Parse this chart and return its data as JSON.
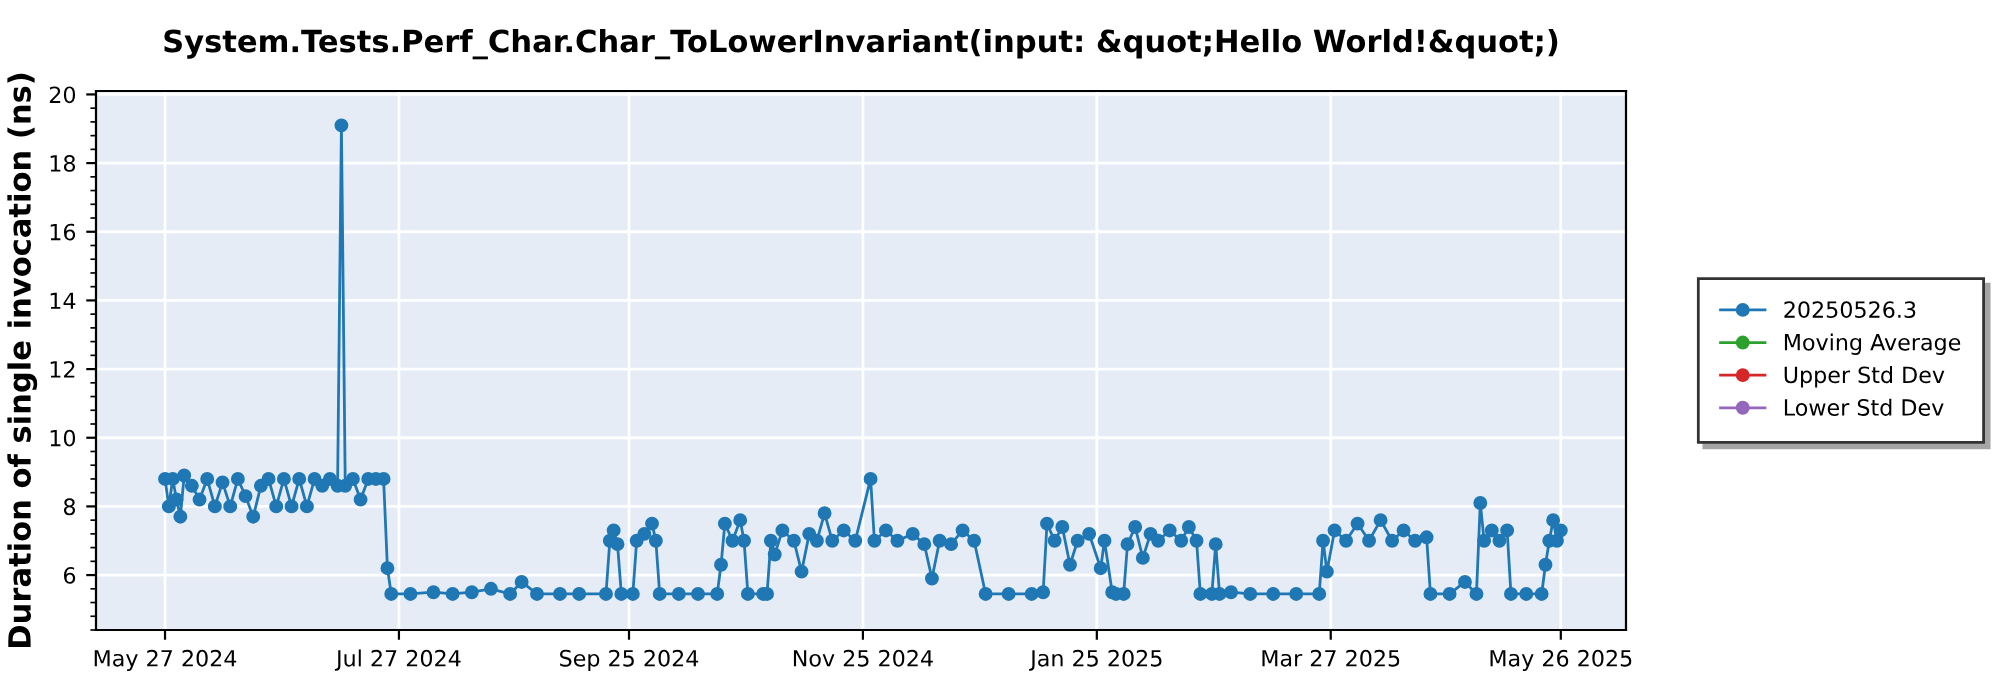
{
  "chart_data": {
    "type": "line",
    "title": "System.Tests.Perf_Char.Char_ToLowerInvariant(input: &quot;Hello World!&quot;)",
    "ylabel": "Duration of single invocation (ns)",
    "xlim": [
      "2024-05-09",
      "2025-06-12"
    ],
    "xticks": [
      {
        "value": "2024-05-27",
        "label": "May 27 2024"
      },
      {
        "value": "2024-07-27",
        "label": "Jul 27 2024"
      },
      {
        "value": "2024-09-25",
        "label": "Sep 25 2024"
      },
      {
        "value": "2024-11-25",
        "label": "Nov 25 2024"
      },
      {
        "value": "2025-01-25",
        "label": "Jan 25 2025"
      },
      {
        "value": "2025-03-27",
        "label": "Mar 27 2025"
      },
      {
        "value": "2025-05-26",
        "label": "May 26 2025"
      }
    ],
    "ylim": [
      4.4,
      20.1
    ],
    "yticks": [
      6,
      8,
      10,
      12,
      14,
      16,
      18,
      20
    ],
    "grid": true,
    "legend": "right",
    "marker": "circle",
    "line_style": "solid",
    "series": [
      {
        "name": "20250526.3",
        "color": "#1f77b4",
        "x": [
          "2024-05-27",
          "2024-05-28",
          "2024-05-29",
          "2024-05-30",
          "2024-05-31",
          "2024-06-01",
          "2024-06-03",
          "2024-06-05",
          "2024-06-07",
          "2024-06-09",
          "2024-06-11",
          "2024-06-13",
          "2024-06-15",
          "2024-06-17",
          "2024-06-19",
          "2024-06-21",
          "2024-06-23",
          "2024-06-25",
          "2024-06-27",
          "2024-06-29",
          "2024-07-01",
          "2024-07-03",
          "2024-07-05",
          "2024-07-07",
          "2024-07-09",
          "2024-07-11",
          "2024-07-12",
          "2024-07-13",
          "2024-07-15",
          "2024-07-17",
          "2024-07-19",
          "2024-07-21",
          "2024-07-23",
          "2024-07-24",
          "2024-07-25",
          "2024-07-30",
          "2024-08-05",
          "2024-08-10",
          "2024-08-15",
          "2024-08-20",
          "2024-08-25",
          "2024-08-28",
          "2024-09-01",
          "2024-09-07",
          "2024-09-12",
          "2024-09-19",
          "2024-09-20",
          "2024-09-21",
          "2024-09-22",
          "2024-09-23",
          "2024-09-26",
          "2024-09-27",
          "2024-09-29",
          "2024-10-01",
          "2024-10-02",
          "2024-10-03",
          "2024-10-08",
          "2024-10-13",
          "2024-10-18",
          "2024-10-19",
          "2024-10-20",
          "2024-10-22",
          "2024-10-24",
          "2024-10-25",
          "2024-10-26",
          "2024-10-30",
          "2024-10-31",
          "2024-11-01",
          "2024-11-02",
          "2024-11-04",
          "2024-11-07",
          "2024-11-09",
          "2024-11-11",
          "2024-11-13",
          "2024-11-15",
          "2024-11-17",
          "2024-11-20",
          "2024-11-23",
          "2024-11-27",
          "2024-11-28",
          "2024-12-01",
          "2024-12-04",
          "2024-12-08",
          "2024-12-11",
          "2024-12-13",
          "2024-12-15",
          "2024-12-18",
          "2024-12-21",
          "2024-12-24",
          "2024-12-27",
          "2025-01-02",
          "2025-01-08",
          "2025-01-11",
          "2025-01-12",
          "2025-01-14",
          "2025-01-16",
          "2025-01-18",
          "2025-01-20",
          "2025-01-23",
          "2025-01-26",
          "2025-01-27",
          "2025-01-29",
          "2025-01-30",
          "2025-02-01",
          "2025-02-02",
          "2025-02-04",
          "2025-02-06",
          "2025-02-08",
          "2025-02-10",
          "2025-02-13",
          "2025-02-16",
          "2025-02-18",
          "2025-02-20",
          "2025-02-21",
          "2025-02-24",
          "2025-02-25",
          "2025-02-26",
          "2025-03-01",
          "2025-03-06",
          "2025-03-12",
          "2025-03-18",
          "2025-03-24",
          "2025-03-25",
          "2025-03-26",
          "2025-03-28",
          "2025-03-31",
          "2025-04-03",
          "2025-04-06",
          "2025-04-09",
          "2025-04-12",
          "2025-04-15",
          "2025-04-18",
          "2025-04-21",
          "2025-04-22",
          "2025-04-27",
          "2025-05-01",
          "2025-05-04",
          "2025-05-05",
          "2025-05-06",
          "2025-05-08",
          "2025-05-10",
          "2025-05-12",
          "2025-05-13",
          "2025-05-17",
          "2025-05-21",
          "2025-05-22",
          "2025-05-23",
          "2025-05-24",
          "2025-05-25",
          "2025-05-26"
        ],
        "values": [
          8.8,
          8.0,
          8.8,
          8.2,
          7.7,
          8.9,
          8.6,
          8.2,
          8.8,
          8.0,
          8.7,
          8.0,
          8.8,
          8.3,
          7.7,
          8.6,
          8.8,
          8.0,
          8.8,
          8.0,
          8.8,
          8.0,
          8.8,
          8.6,
          8.8,
          8.6,
          19.1,
          8.6,
          8.8,
          8.2,
          8.8,
          8.8,
          8.8,
          6.2,
          5.45,
          5.45,
          5.5,
          5.45,
          5.5,
          5.6,
          5.45,
          5.8,
          5.45,
          5.45,
          5.45,
          5.45,
          7.0,
          7.3,
          6.9,
          5.45,
          5.45,
          7.0,
          7.2,
          7.5,
          7.0,
          5.45,
          5.45,
          5.45,
          5.45,
          6.3,
          7.5,
          7.0,
          7.6,
          7.0,
          5.45,
          5.45,
          5.45,
          7.0,
          6.6,
          7.3,
          7.0,
          6.1,
          7.2,
          7.0,
          7.8,
          7.0,
          7.3,
          7.0,
          8.8,
          7.0,
          7.3,
          7.0,
          7.2,
          6.9,
          5.9,
          7.0,
          6.9,
          7.3,
          7.0,
          5.45,
          5.45,
          5.45,
          5.5,
          7.5,
          7.0,
          7.4,
          6.3,
          7.0,
          7.2,
          6.2,
          7.0,
          5.5,
          5.45,
          5.45,
          6.9,
          7.4,
          6.5,
          7.2,
          7.0,
          7.3,
          7.0,
          7.4,
          7.0,
          5.45,
          5.45,
          6.9,
          5.45,
          5.5,
          5.45,
          5.45,
          5.45,
          5.45,
          7.0,
          6.1,
          7.3,
          7.0,
          7.5,
          7.0,
          7.6,
          7.0,
          7.3,
          7.0,
          7.1,
          5.45,
          5.45,
          5.8,
          5.45,
          8.1,
          7.0,
          7.3,
          7.0,
          7.3,
          5.45,
          5.45,
          5.45,
          6.3,
          7.0,
          7.6,
          7.0,
          7.3
        ]
      },
      {
        "name": "Moving Average",
        "color": "#2ca02c"
      },
      {
        "name": "Upper Std Dev",
        "color": "#d62728"
      },
      {
        "name": "Lower Std Dev",
        "color": "#9467bd"
      }
    ]
  }
}
